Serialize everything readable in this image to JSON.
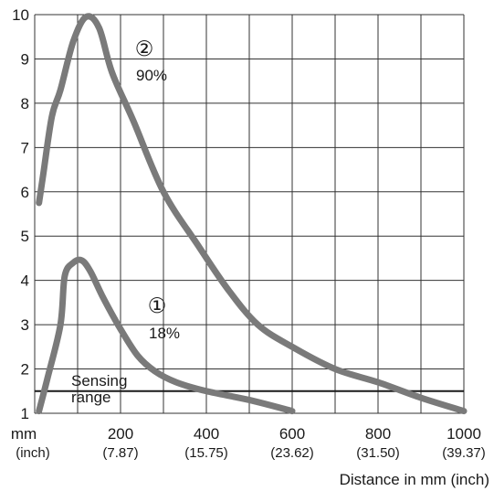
{
  "chart_data": {
    "type": "line",
    "title": "",
    "ylabel": "",
    "xlabel": "Distance in mm (inch)",
    "xlim": [
      0,
      1000
    ],
    "ylim": [
      1,
      10
    ],
    "grid": true,
    "x_unit_label": "mm",
    "x_unit_sub": "(inch)",
    "x_ticks": [
      {
        "value": 200,
        "label": "200",
        "sub": "(7.87)"
      },
      {
        "value": 400,
        "label": "400",
        "sub": "(15.75)"
      },
      {
        "value": 600,
        "label": "600",
        "sub": "(23.62)"
      },
      {
        "value": 800,
        "label": "800",
        "sub": "(31.50)"
      },
      {
        "value": 1000,
        "label": "1000",
        "sub": "(39.37)"
      }
    ],
    "y_ticks": [
      1,
      2,
      3,
      4,
      5,
      6,
      7,
      8,
      9,
      10
    ],
    "series": [
      {
        "marker": "①",
        "label": "18%",
        "color": "#7a7a7a",
        "x": [
          10,
          30,
          60,
          70,
          90,
          110,
          130,
          160,
          200,
          240,
          280,
          330,
          400,
          500,
          600
        ],
        "y": [
          1.05,
          1.8,
          3.0,
          4.1,
          4.4,
          4.45,
          4.2,
          3.6,
          2.9,
          2.3,
          1.95,
          1.7,
          1.5,
          1.3,
          1.05
        ]
      },
      {
        "marker": "②",
        "label": "90%",
        "color": "#7a7a7a",
        "x": [
          10,
          20,
          40,
          60,
          90,
          120,
          150,
          180,
          230,
          300,
          380,
          450,
          520,
          600,
          700,
          800,
          900,
          1000
        ],
        "y": [
          5.75,
          6.4,
          7.7,
          8.3,
          9.4,
          9.95,
          9.7,
          8.7,
          7.6,
          6.0,
          4.8,
          3.8,
          3.0,
          2.5,
          2.0,
          1.7,
          1.35,
          1.05
        ]
      }
    ],
    "reference_lines": [
      {
        "y": 1.5,
        "label_line1": "Sensing",
        "label_line2": "range",
        "color": "#1a1a1a"
      }
    ]
  }
}
